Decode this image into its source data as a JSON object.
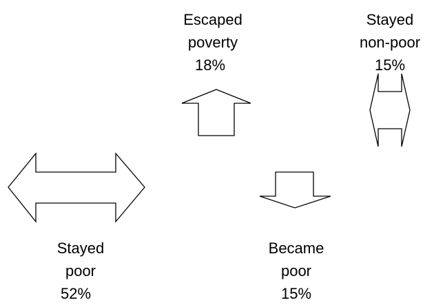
{
  "items": [
    {
      "label": [
        "Escaped",
        "poverty"
      ],
      "value": "18%"
    },
    {
      "label": [
        "Stayed",
        "non-poor"
      ],
      "value": "15%"
    },
    {
      "label": [
        "Stayed",
        "poor"
      ],
      "value": "52%"
    },
    {
      "label": [
        "Became",
        "poor"
      ],
      "value": "15%"
    }
  ]
}
